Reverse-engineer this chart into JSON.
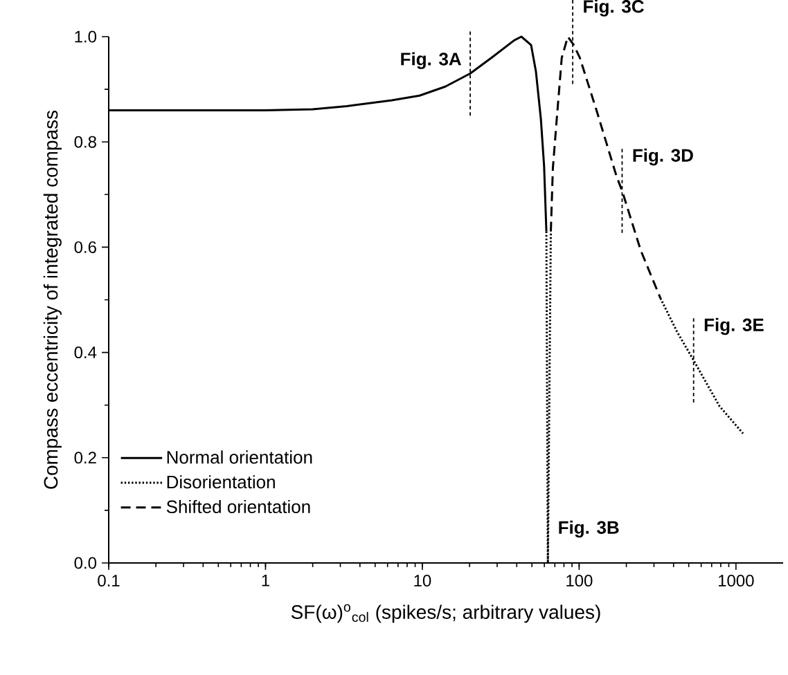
{
  "chart_data": {
    "type": "line",
    "xlabel": "SF(ω)$^{o}$$_{col}$ (spikes/s; arbitrary values)",
    "ylabel": "Compass eccentricity of integrated compass",
    "log": "x",
    "xlim": [
      0.1,
      2000
    ],
    "xticks": [
      0.1,
      1,
      10,
      100,
      1000
    ],
    "ylim": [
      0,
      1.0
    ],
    "yticks": [
      {
        "value": 0,
        "label": "0.0"
      },
      0.2,
      0.4,
      0.6,
      0.8,
      {
        "value": 1.0,
        "label": "1.0"
      }
    ],
    "legend": "bottom left",
    "marker": "none",
    "series": [
      {
        "name": "Normal orientation",
        "color": "#000000",
        "line_style": "solid",
        "x": [
          0.1,
          1,
          2,
          3.3,
          6.4,
          9.6,
          14,
          20.2,
          27.9,
          38.5,
          42.8,
          49.4,
          53,
          57,
          59.8,
          61.8
        ],
        "values": [
          0.86,
          0.86,
          0.862,
          0.868,
          0.879,
          0.888,
          0.905,
          0.93,
          0.961,
          0.993,
          1.0,
          0.984,
          0.934,
          0.844,
          0.753,
          0.63
        ]
      },
      {
        "name": "Disorientation",
        "color": "#000000",
        "line_style": "dotted",
        "x": [
          61.8,
          62.5,
          63.2,
          64.5,
          66,
          200,
          330,
          420,
          537,
          785,
          1110
        ],
        "values": [
          0.63,
          0.3,
          0.0,
          0.3,
          0.63,
          null,
          0.503,
          0.44,
          0.385,
          0.298,
          0.246
        ]
      },
      {
        "name": "Shifted orientation",
        "color": "#000000",
        "line_style": "dashed",
        "x": [
          66,
          68,
          72,
          77.5,
          84.7,
          92,
          101,
          130,
          173,
          188,
          247,
          330
        ],
        "values": [
          0.63,
          0.75,
          0.844,
          0.96,
          1.0,
          0.985,
          0.96,
          0.857,
          0.735,
          0.707,
          0.594,
          0.503
        ]
      }
    ],
    "annotations": [
      {
        "text": "Fig. 3A",
        "x": 20.2,
        "y": 0.93
      },
      {
        "text": "Fig. 3B",
        "x": 63.2,
        "y": 0.0
      },
      {
        "text": "Fig. 3C",
        "x": 91,
        "y": 0.99
      },
      {
        "text": "Fig. 3D",
        "x": 188,
        "y": 0.707
      },
      {
        "text": "Fig. 3E",
        "x": 537,
        "y": 0.385
      }
    ]
  }
}
